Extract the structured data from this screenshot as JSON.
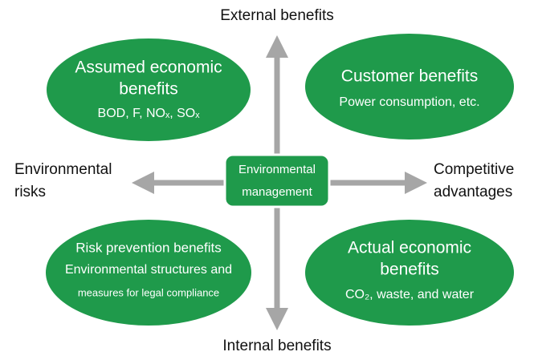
{
  "axes": {
    "top": "External benefits",
    "bottom": "Internal benefits",
    "left": [
      "Environmental",
      "risks"
    ],
    "right": [
      "Competitive",
      "advantages"
    ]
  },
  "center": [
    "Environmental",
    "management"
  ],
  "quadrants": [
    {
      "title": [
        "Assumed economic",
        "benefits"
      ],
      "details": [
        "BOD, F, NOₓ, SOₓ"
      ]
    },
    {
      "title": [
        "Customer benefits"
      ],
      "details": [
        "Power consumption, etc."
      ]
    },
    {
      "title": [
        "Risk prevention benefits"
      ],
      "details": [
        "Environmental structures and",
        "measures for legal compliance"
      ]
    },
    {
      "title": [
        "Actual economic",
        "benefits"
      ],
      "details": [
        "CO₂, waste, and water"
      ]
    }
  ]
}
